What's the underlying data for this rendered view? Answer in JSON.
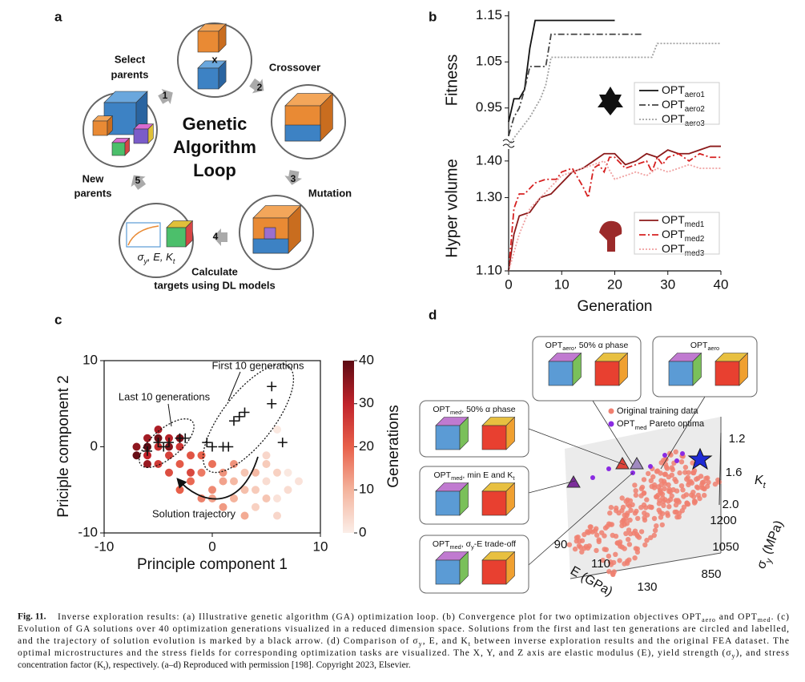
{
  "figure": {
    "panel_labels": [
      "a",
      "b",
      "c",
      "d"
    ],
    "panel_a": {
      "title": [
        "Genetic",
        "Algorithm",
        "Loop"
      ],
      "steps": [
        "1",
        "2",
        "3",
        "4",
        "5"
      ],
      "select": [
        "Select",
        "parents"
      ],
      "crossover": "Crossover",
      "mutation": "Mutation",
      "calculate": [
        "Calculate",
        "targets using DL models"
      ],
      "new": [
        "New",
        "parents"
      ],
      "cross_symbol": "x",
      "targets": [
        "σ",
        "y",
        ", E, K",
        "t"
      ]
    },
    "panel_d": {
      "insets": [
        [
          "OPT",
          "aero",
          ", 50% α phase"
        ],
        [
          "OPT",
          "aero"
        ],
        [
          "OPT",
          "med",
          ", 50% α phase"
        ],
        [
          "OPT",
          "med",
          ", min E and K",
          "t"
        ],
        [
          "OPT",
          "med",
          ", σ",
          "y",
          "-E trade-off"
        ]
      ],
      "legend": [
        [
          "Original training data"
        ],
        [
          "OPT",
          "med",
          " Pareto optima"
        ]
      ],
      "kt_label": [
        "K",
        "t"
      ],
      "kt_ticks": [
        "1.2",
        "1.6",
        "2.0"
      ],
      "sy_label": [
        "σ",
        "y",
        " (MPa)"
      ],
      "sy_ticks": [
        "1200",
        "1050",
        "850"
      ],
      "e_label": [
        "E (GPa)"
      ],
      "e_ticks": [
        "90",
        "110",
        "130"
      ]
    },
    "caption": {
      "label": "Fig. 11.",
      "lines": [
        [
          "Inverse exploration results: (a) Illustrative genetic algorithm (GA) optimization loop. (b) Convergence plot for two optimization objectives OPT",
          "aero",
          " and OPT",
          "med",
          ". (c)"
        ],
        [
          "Evolution of GA solutions over 40 optimization generations visualized in a reduced dimension space. Solutions from the first and last ten generations are circled and labelled,"
        ],
        [
          "and the trajectory of solution evolution is marked by a black arrow. (d) Comparison of σ",
          "y",
          ", E, and K",
          "t",
          " between inverse exploration results and the original FEA dataset. The"
        ],
        [
          "optimal microstructures and the stress fields for corresponding optimization tasks are visualized. The X, Y, and Z axis are elastic modulus (E), yield strength (σ",
          "y",
          "), and stress"
        ],
        [
          "concentration factor (K",
          "t",
          "), respectively. (a–d) Reproduced with permission [198]. Copyright 2023, Elsevier."
        ]
      ]
    }
  },
  "chart_data": [
    {
      "type": "line",
      "ylabel": "Fitness",
      "ylabel_color": "#111111",
      "xlim": [
        0,
        40
      ],
      "ylim": [
        0.88,
        1.16
      ],
      "yticks": [
        0.95,
        1.05,
        1.15
      ],
      "series": [
        {
          "name": [
            "OPT",
            "aero1"
          ],
          "color": "#111111",
          "dash": "solid",
          "x": [
            0,
            1,
            2,
            3,
            4,
            5,
            20
          ],
          "values": [
            0.92,
            0.97,
            0.97,
            0.99,
            1.08,
            1.14,
            1.14
          ]
        },
        {
          "name": [
            "OPT",
            "aero2"
          ],
          "color": "#444444",
          "dash": "dashdot",
          "x": [
            0,
            1,
            2,
            3,
            4,
            7,
            8,
            25
          ],
          "values": [
            0.89,
            0.93,
            0.95,
            0.99,
            1.04,
            1.04,
            1.11,
            1.11
          ]
        },
        {
          "name": [
            "OPT",
            "aero3"
          ],
          "color": "#a0a0a0",
          "dash": "dotted",
          "x": [
            0,
            2,
            4,
            6,
            7,
            8,
            27,
            28,
            40
          ],
          "values": [
            0.87,
            0.9,
            0.93,
            0.97,
            1.0,
            1.06,
            1.06,
            1.09,
            1.09
          ]
        }
      ]
    },
    {
      "type": "line",
      "ylabel": "Hyper volume",
      "ylabel_color": "#8b1a1a",
      "xlabel": "Generation",
      "xlim": [
        0,
        40
      ],
      "ylim": [
        1.1,
        1.45
      ],
      "xticks": [
        0,
        10,
        20,
        30,
        40
      ],
      "yticks": [
        {
          "value": 1.1,
          "label": "1.10"
        },
        {
          "value": 1.3,
          "label": "1.30"
        },
        {
          "value": 1.4,
          "label": "1.40"
        }
      ],
      "series": [
        {
          "name": [
            "OPT",
            "med1"
          ],
          "color": "#8b1a1a",
          "dash": "solid",
          "x": [
            0,
            1,
            2,
            4,
            6,
            8,
            10,
            12,
            14,
            16,
            18,
            20,
            22,
            24,
            26,
            28,
            30,
            32,
            34,
            36,
            38,
            40
          ],
          "values": [
            1.1,
            1.2,
            1.25,
            1.26,
            1.3,
            1.31,
            1.34,
            1.37,
            1.38,
            1.4,
            1.42,
            1.42,
            1.39,
            1.4,
            1.42,
            1.41,
            1.43,
            1.42,
            1.42,
            1.43,
            1.44,
            1.44
          ]
        },
        {
          "name": [
            "OPT",
            "med2"
          ],
          "color": "#d62020",
          "dash": "dashdot",
          "x": [
            0,
            1,
            2,
            3,
            5,
            7,
            9,
            10,
            12,
            14,
            15,
            16,
            17,
            18,
            19,
            20,
            22,
            24,
            26,
            27,
            28,
            29,
            30,
            32,
            34,
            36,
            38,
            40
          ],
          "values": [
            1.1,
            1.27,
            1.31,
            1.31,
            1.34,
            1.35,
            1.35,
            1.37,
            1.38,
            1.33,
            1.3,
            1.38,
            1.39,
            1.37,
            1.41,
            1.41,
            1.38,
            1.39,
            1.4,
            1.37,
            1.41,
            1.39,
            1.41,
            1.42,
            1.4,
            1.42,
            1.41,
            1.41
          ]
        },
        {
          "name": [
            "OPT",
            "med3"
          ],
          "color": "#f0a0a0",
          "dash": "dotted",
          "x": [
            0,
            2,
            4,
            6,
            8,
            10,
            12,
            14,
            16,
            18,
            20,
            22,
            24,
            26,
            28,
            30,
            32,
            34,
            36,
            40
          ],
          "values": [
            1.1,
            1.2,
            1.27,
            1.3,
            1.33,
            1.36,
            1.37,
            1.38,
            1.39,
            1.4,
            1.35,
            1.36,
            1.37,
            1.36,
            1.38,
            1.37,
            1.38,
            1.39,
            1.38,
            1.38
          ]
        }
      ]
    },
    {
      "type": "scatter",
      "xlabel": "Principle component 1",
      "ylabel": "Priciple component 2",
      "xlim": [
        -10,
        10
      ],
      "ylim": [
        -10,
        10
      ],
      "xticks": [
        -10,
        0,
        10
      ],
      "yticks": [
        -10,
        0,
        10
      ],
      "colorbar": {
        "label": "Generations",
        "lim": [
          0,
          40
        ],
        "ticks": [
          0,
          10,
          20,
          30,
          40
        ]
      },
      "annotations": [
        "First 10 generations",
        "Last 10 generations",
        "Solution trajectory"
      ],
      "series": [
        {
          "marker": "circle",
          "x": [
            6,
            5,
            7,
            4,
            6,
            3,
            5,
            2,
            4,
            1,
            3,
            2,
            0,
            1,
            -1,
            0,
            -2,
            -1,
            -3,
            -2,
            -4,
            -3,
            -4,
            -5,
            -3,
            -5,
            -6,
            -4,
            -6,
            -5,
            -7,
            -6,
            -4,
            -5,
            -6,
            -7,
            -3,
            6,
            5,
            7,
            8,
            2,
            3,
            -1,
            -2,
            1,
            0,
            4,
            6,
            5
          ],
          "values": [
            -6,
            -4,
            -3,
            -7,
            -8,
            -5,
            -2,
            -6,
            -3,
            -4,
            -8,
            -2,
            -5,
            -7,
            -3,
            -2,
            -4,
            -6,
            -2,
            -1,
            -3,
            -5,
            -1,
            -2,
            0,
            0,
            -1,
            1,
            1,
            2,
            0,
            -2,
            0,
            1,
            0,
            -1,
            1,
            2,
            -1,
            -5,
            -4,
            -4,
            -3,
            -1,
            -3,
            -3,
            -6,
            -5,
            -3,
            -6
          ],
          "generations": [
            2,
            3,
            1,
            5,
            4,
            8,
            6,
            10,
            9,
            12,
            11,
            14,
            15,
            13,
            17,
            18,
            19,
            16,
            21,
            22,
            23,
            20,
            25,
            26,
            27,
            28,
            30,
            31,
            33,
            32,
            35,
            34,
            36,
            38,
            40,
            39,
            37,
            1,
            4,
            3,
            2,
            9,
            7,
            20,
            24,
            14,
            12,
            6,
            5,
            7
          ]
        },
        {
          "marker": "plus",
          "color": "#111111",
          "x": [
            5.5,
            2.5,
            3,
            2,
            -0.5,
            0,
            1,
            1.5,
            6.5,
            5.5
          ],
          "values": [
            7,
            3.5,
            4,
            3,
            0.5,
            0,
            0,
            0,
            0.5,
            5
          ]
        },
        {
          "marker": "plus",
          "color": "#111111",
          "x": [
            -6,
            -5,
            -4,
            -3,
            -2.5,
            -4.5
          ],
          "values": [
            -0.5,
            0.5,
            0.5,
            1,
            1,
            0
          ]
        }
      ]
    }
  ]
}
